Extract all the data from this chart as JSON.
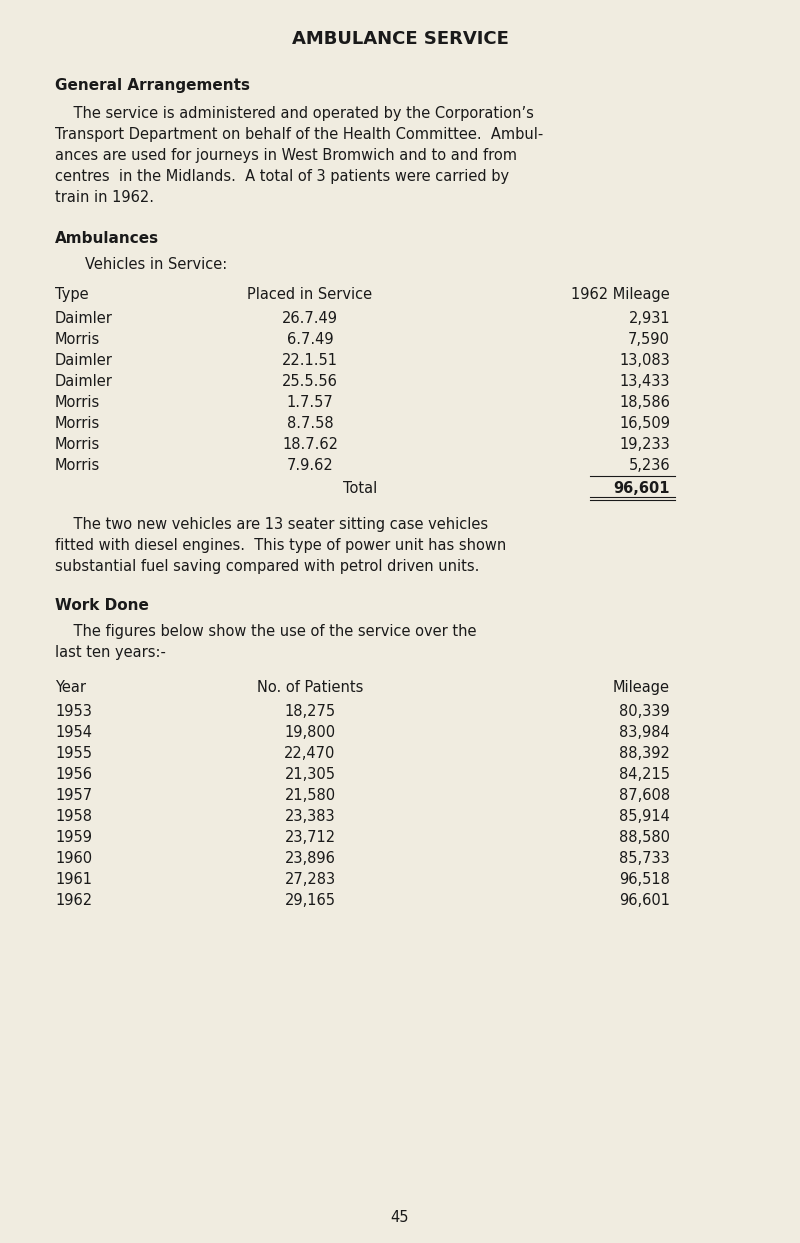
{
  "title": "AMBULANCE SERVICE",
  "bg_color": "#f0ece0",
  "text_color": "#1a1a1a",
  "page_number": "45",
  "section1_heading": "General Arrangements",
  "section1_para": "    The service is administered and operated by the Corporation’s Transport Department on behalf of the Health Committee. Ambul­ances are used for journeys in West Bromwich and to and from centres  in the Midlands.  A total of 3 patients were carried by train in 1962.",
  "section2_heading": "Ambulances",
  "section2_subheading": "    Vehicles in Service:",
  "table1_headers": [
    "Type",
    "Placed in Service",
    "1962 Mileage"
  ],
  "table1_rows": [
    [
      "Daimler",
      "26.7.49",
      "2,931"
    ],
    [
      "Morris",
      "6.7.49",
      "7,590"
    ],
    [
      "Daimler",
      "22.1.51",
      "13,083"
    ],
    [
      "Daimler",
      "25.5.56",
      "13,433"
    ],
    [
      "Morris",
      "1.7.57",
      "18,586"
    ],
    [
      "Morris",
      "8.7.58",
      "16,509"
    ],
    [
      "Morris",
      "18.7.62",
      "19,233"
    ],
    [
      "Morris",
      "7.9.62",
      "5,236"
    ]
  ],
  "table1_total_label": "Total",
  "table1_total_value": "96,601",
  "section2_para": "    The two new vehicles are 13 seater sitting case vehicles fitted with diesel engines.  This type of power unit has shown substantial fuel saving compared with petrol driven units.",
  "section3_heading": "Work Done",
  "section3_para": "    The figures below show the use of the service over the last ten years:-",
  "table2_headers": [
    "Year",
    "No. of Patients",
    "Mileage"
  ],
  "table2_rows": [
    [
      "1953",
      "18,275",
      "80,339"
    ],
    [
      "1954",
      "19,800",
      "83,984"
    ],
    [
      "1955",
      "22,470",
      "88,392"
    ],
    [
      "1956",
      "21,305",
      "84,215"
    ],
    [
      "1957",
      "21,580",
      "87,608"
    ],
    [
      "1958",
      "23,383",
      "85,914"
    ],
    [
      "1959",
      "23,712",
      "88,580"
    ],
    [
      "1960",
      "23,896",
      "85,733"
    ],
    [
      "1961",
      "27,283",
      "96,518"
    ],
    [
      "1962",
      "29,165",
      "96,601"
    ]
  ]
}
